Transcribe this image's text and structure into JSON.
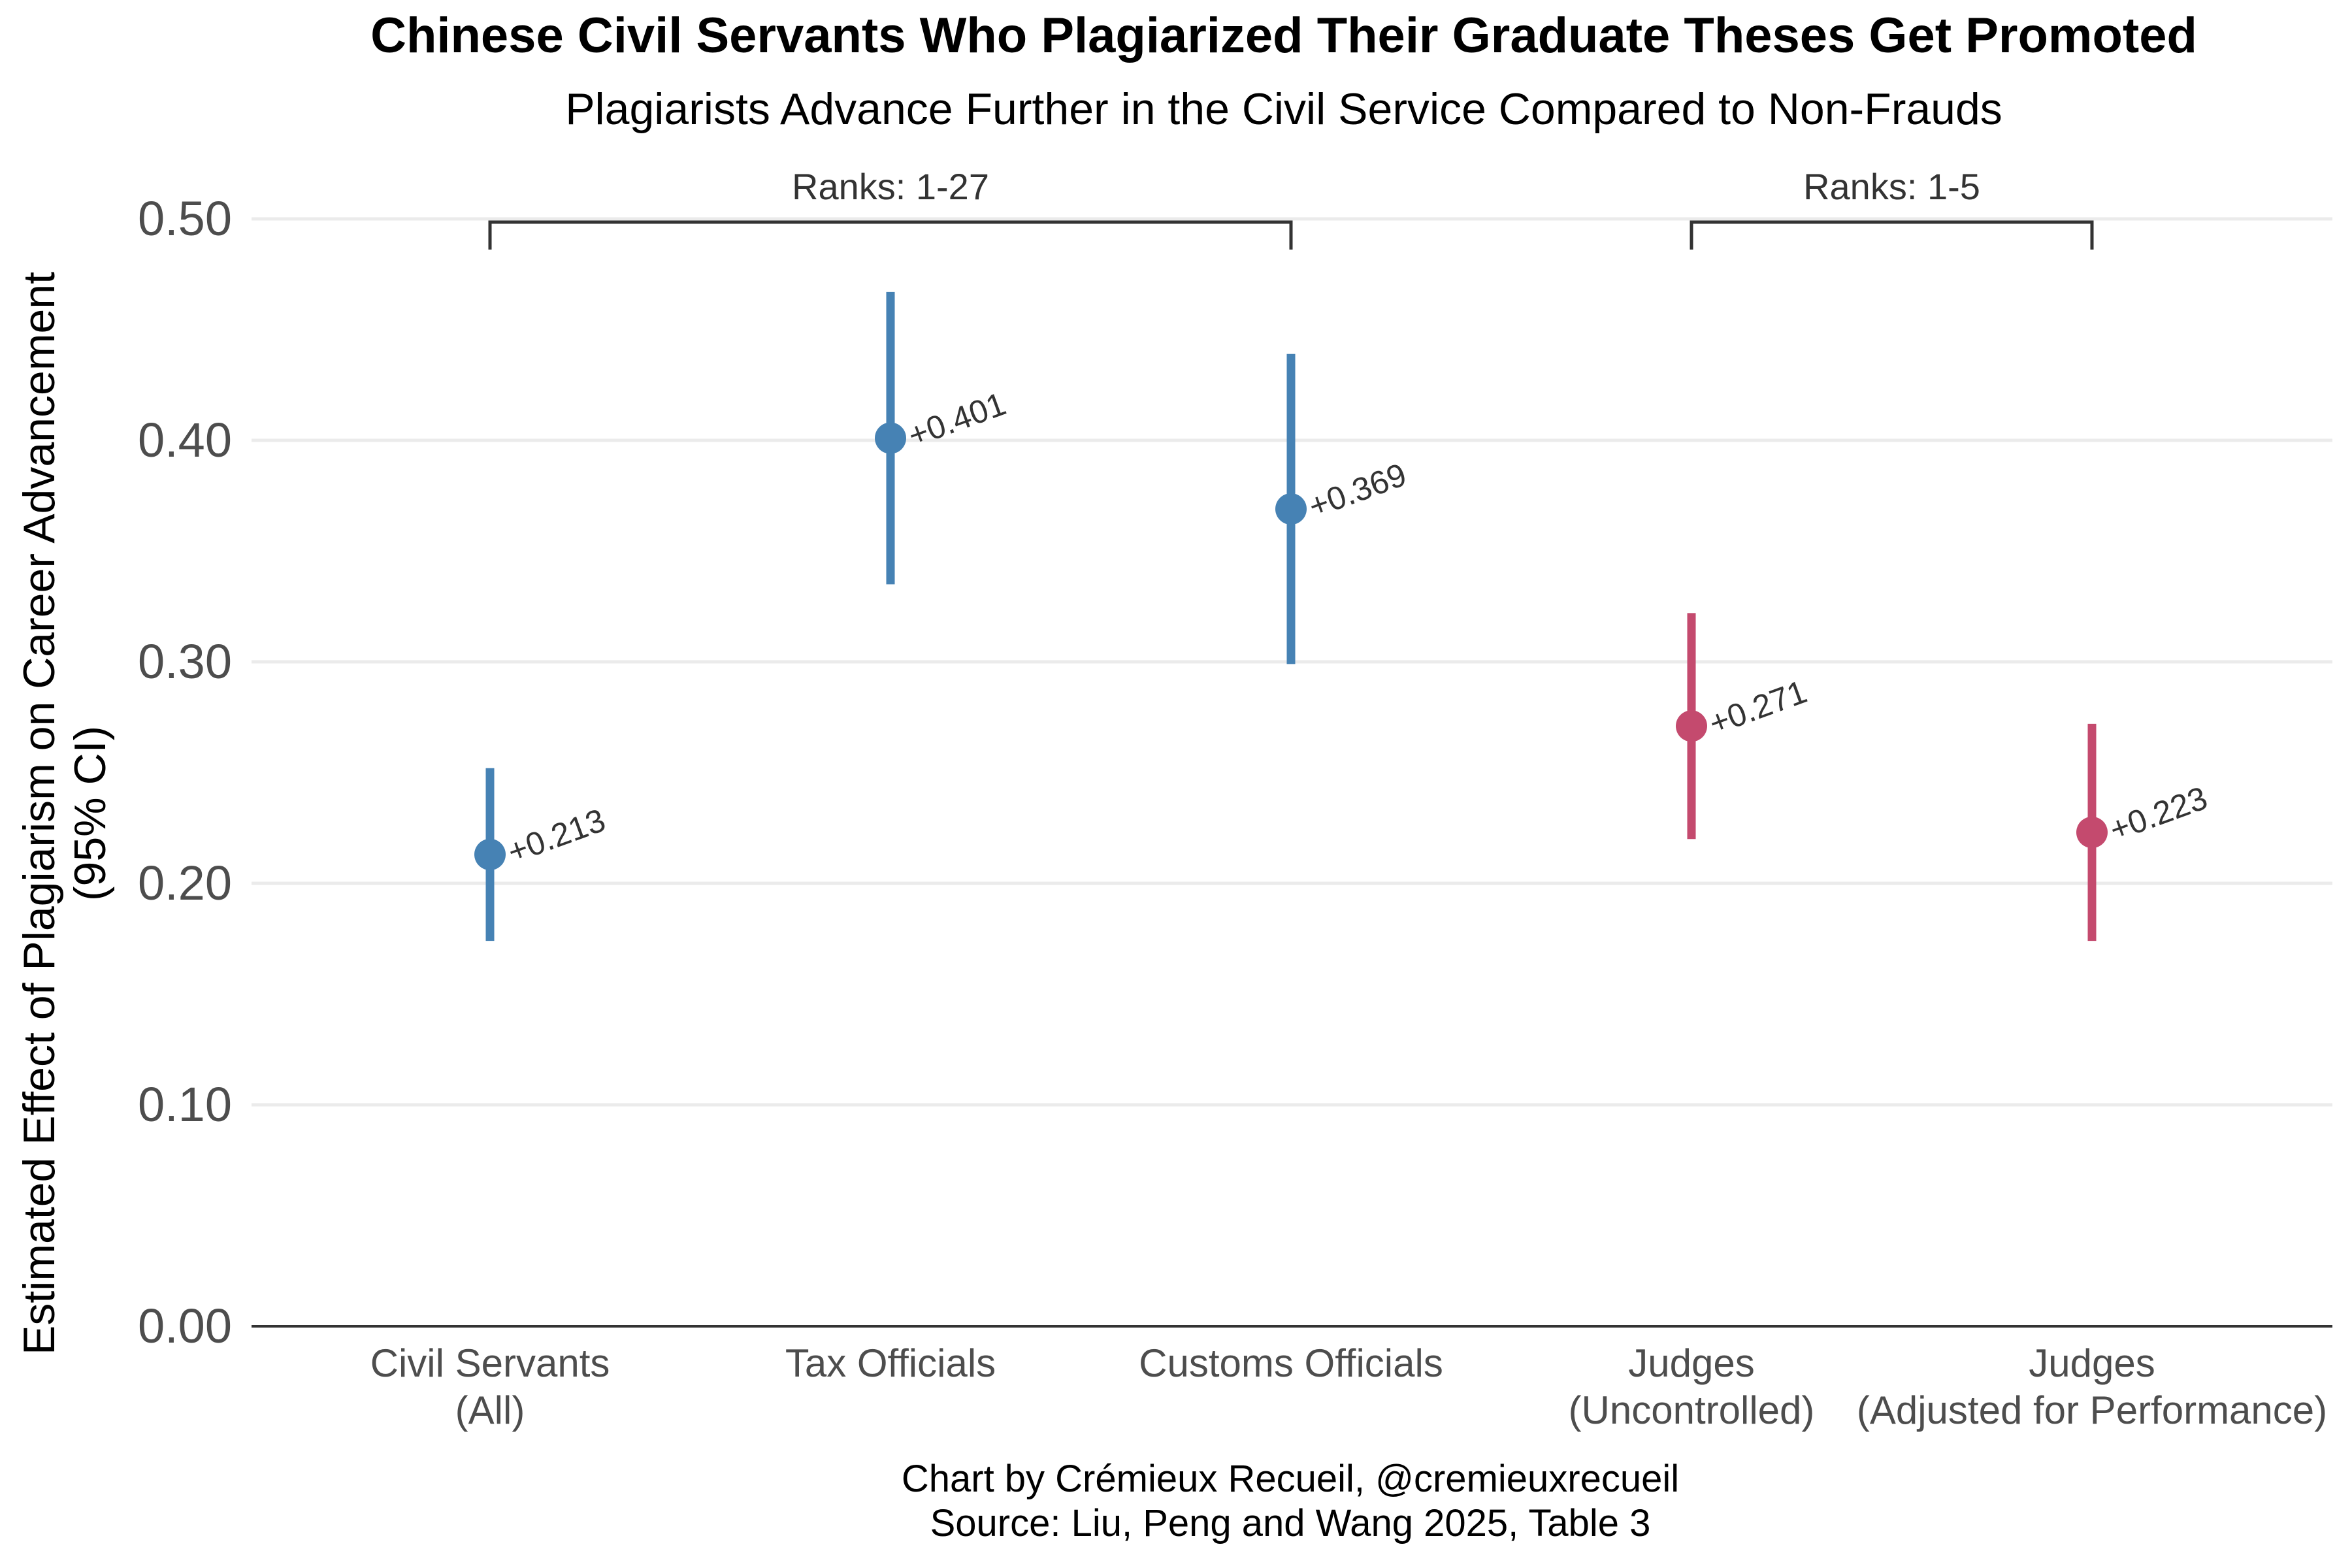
{
  "chart_data": {
    "type": "scatter",
    "title": "Chinese Civil Servants Who Plagiarized Their Graduate Theses Get Promoted",
    "subtitle": "Plagiarists Advance Further in the Civil Service Compared to Non-Frauds",
    "ylabel_lines": [
      "Estimated Effect of Plagiarism on Career Advancement",
      "(95% CI)"
    ],
    "caption_lines": [
      "Chart by Crémieux Recueil, @cremieuxrecueil",
      "Source: Liu, Peng and Wang 2025, Table 3"
    ],
    "ylim": [
      0,
      0.5
    ],
    "yticks": [
      "0.00",
      "0.10",
      "0.20",
      "0.30",
      "0.40",
      "0.50"
    ],
    "grid": "horizontal",
    "colors": {
      "blue": "#4682B4",
      "red": "#C44A6E"
    },
    "points": [
      {
        "category_lines": [
          "Civil Servants",
          "(All)"
        ],
        "value": 0.213,
        "ci_low": 0.174,
        "ci_high": 0.252,
        "label": "+0.213",
        "color": "#4682B4"
      },
      {
        "category_lines": [
          "Tax Officials"
        ],
        "value": 0.401,
        "ci_low": 0.335,
        "ci_high": 0.467,
        "label": "+0.401",
        "color": "#4682B4"
      },
      {
        "category_lines": [
          "Customs Officials"
        ],
        "value": 0.369,
        "ci_low": 0.299,
        "ci_high": 0.439,
        "label": "+0.369",
        "color": "#4682B4"
      },
      {
        "category_lines": [
          "Judges",
          "(Uncontrolled)"
        ],
        "value": 0.271,
        "ci_low": 0.22,
        "ci_high": 0.322,
        "label": "+0.271",
        "color": "#C44A6E"
      },
      {
        "category_lines": [
          "Judges",
          "(Adjusted for Performance)"
        ],
        "value": 0.223,
        "ci_low": 0.174,
        "ci_high": 0.272,
        "label": "+0.223",
        "color": "#C44A6E"
      }
    ],
    "brackets": [
      {
        "label": "Ranks: 1-27",
        "from": 0,
        "to": 2
      },
      {
        "label": "Ranks: 1-5",
        "from": 3,
        "to": 4
      }
    ]
  }
}
